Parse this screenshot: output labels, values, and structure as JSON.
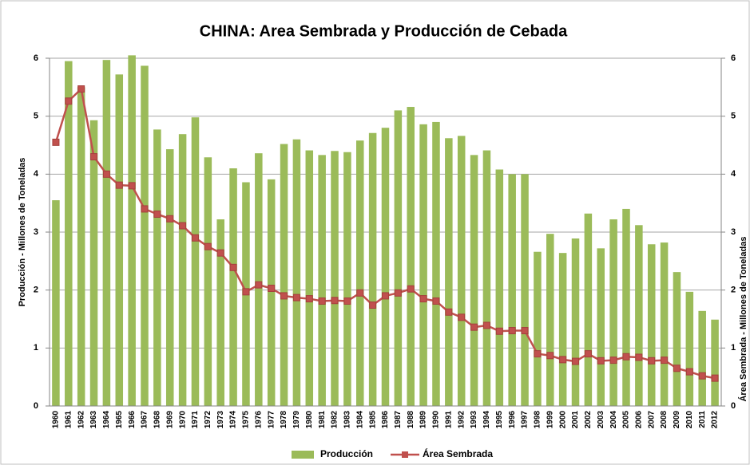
{
  "chart_data": {
    "type": "bar_line",
    "title": "CHINA: Area Sembrada y Producción de Cebada",
    "y_label": "Producción - Millones de Toneladas",
    "y2_label": "Área Sembrada - Millones de Toneladas",
    "categories": [
      "1960",
      "1961",
      "1962",
      "1963",
      "1964",
      "1965",
      "1966",
      "1967",
      "1968",
      "1969",
      "1970",
      "1971",
      "1972",
      "1973",
      "1974",
      "1975",
      "1976",
      "1977",
      "1978",
      "1979",
      "1980",
      "1981",
      "1982",
      "1983",
      "1984",
      "1985",
      "1986",
      "1987",
      "1988",
      "1989",
      "1990",
      "1991",
      "1992",
      "1993",
      "1994",
      "1995",
      "1996",
      "1997",
      "1998",
      "1999",
      "2000",
      "2001",
      "2002",
      "2003",
      "2004",
      "2005",
      "2006",
      "2007",
      "2008",
      "2009",
      "2010",
      "2011",
      "2012"
    ],
    "series": [
      {
        "name": "Producción",
        "color": "#9bbb59",
        "kind": "bar",
        "values": [
          3.55,
          5.95,
          5.5,
          4.93,
          5.97,
          5.72,
          6.05,
          5.87,
          4.77,
          4.43,
          4.69,
          4.98,
          4.29,
          3.22,
          4.1,
          3.86,
          4.36,
          3.91,
          4.52,
          4.6,
          4.41,
          4.33,
          4.4,
          4.38,
          4.58,
          4.71,
          4.8,
          5.1,
          5.16,
          4.86,
          4.9,
          4.62,
          4.66,
          4.33,
          4.41,
          4.08,
          4.0,
          4.0,
          2.66,
          2.97,
          2.64,
          2.89,
          3.32,
          2.72,
          3.22,
          3.4,
          3.12,
          2.79,
          2.82,
          2.31,
          1.97,
          1.64,
          1.49
        ]
      },
      {
        "name": "Área Sembrada",
        "color": "#c0504d",
        "kind": "line",
        "axis": "y2",
        "values": [
          4.55,
          5.26,
          5.47,
          4.3,
          4.0,
          3.81,
          3.8,
          3.4,
          3.31,
          3.23,
          3.11,
          2.9,
          2.75,
          2.64,
          2.39,
          1.97,
          2.09,
          2.03,
          1.9,
          1.87,
          1.85,
          1.81,
          1.82,
          1.81,
          1.95,
          1.74,
          1.9,
          1.95,
          2.02,
          1.85,
          1.81,
          1.62,
          1.53,
          1.36,
          1.39,
          1.29,
          1.3,
          1.3,
          0.9,
          0.87,
          0.8,
          0.77,
          0.9,
          0.78,
          0.79,
          0.85,
          0.84,
          0.78,
          0.79,
          0.65,
          0.59,
          0.52,
          0.48
        ]
      }
    ],
    "ylim": [
      0,
      6
    ],
    "yticks": [
      0,
      1,
      2,
      3,
      4,
      5,
      6
    ],
    "y2lim": [
      0,
      6
    ],
    "y2ticks": [
      0,
      1,
      2,
      3,
      4,
      5,
      6
    ],
    "grid": true,
    "legend": "bottom"
  }
}
